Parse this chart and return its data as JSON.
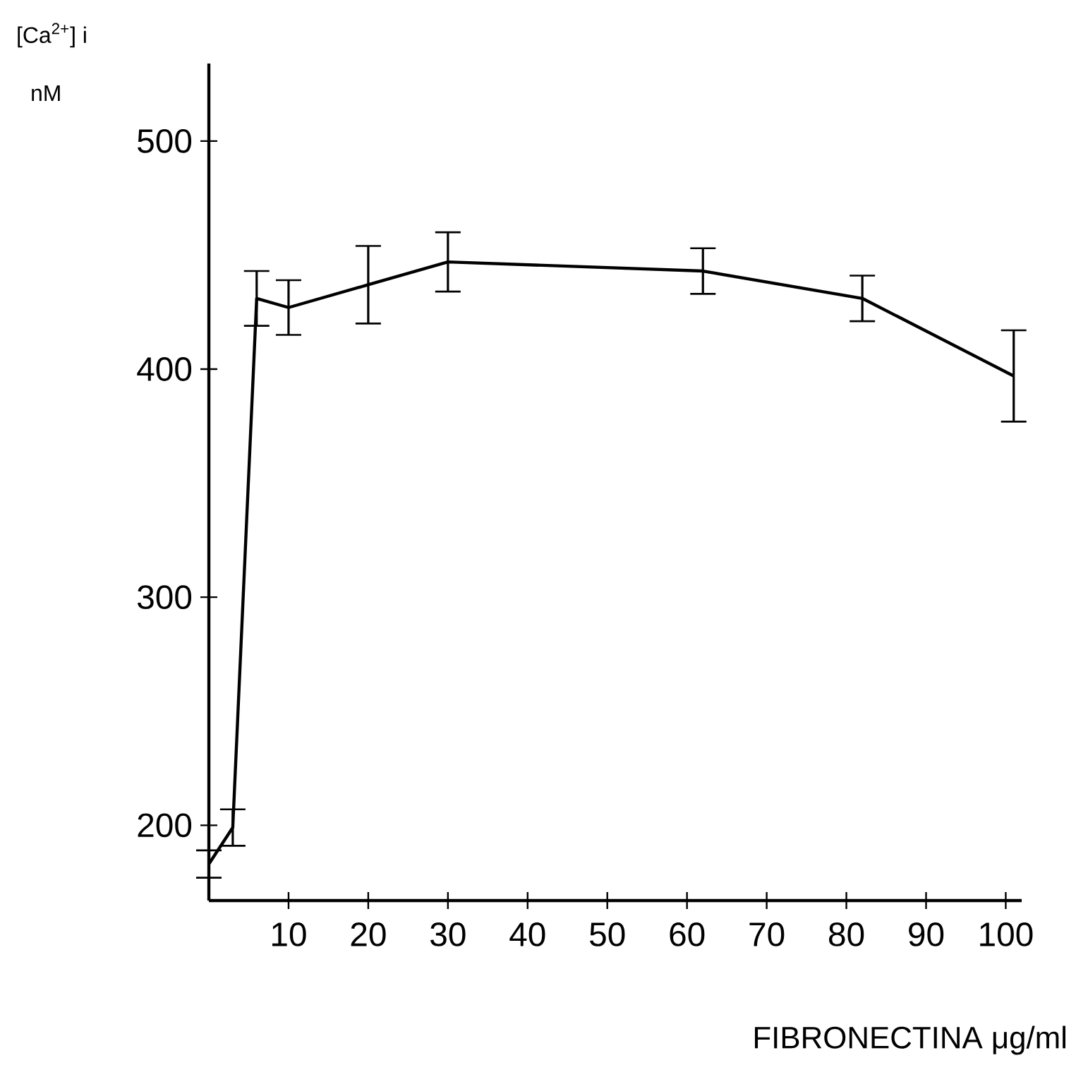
{
  "chart_data": {
    "type": "line",
    "ylabel": "[Ca$^{2+}$] i",
    "xlabel": "FIBRONECTINA μg/ml",
    "annotations": [
      "nM"
    ],
    "x": [
      0,
      3,
      6,
      10,
      20,
      30,
      62,
      82,
      101
    ],
    "values": [
      183,
      199,
      431,
      427,
      437,
      447,
      443,
      431,
      397
    ],
    "errors": [
      6,
      8,
      12,
      12,
      17,
      13,
      10,
      10,
      20
    ],
    "color": "#000000",
    "marker": "none",
    "line_style": "solid",
    "xlim": [
      0,
      102
    ],
    "ylim": [
      167,
      534
    ],
    "xticks": [
      10,
      20,
      30,
      40,
      50,
      60,
      70,
      80,
      90,
      100
    ],
    "yticks": [
      200,
      300,
      400,
      500
    ]
  }
}
